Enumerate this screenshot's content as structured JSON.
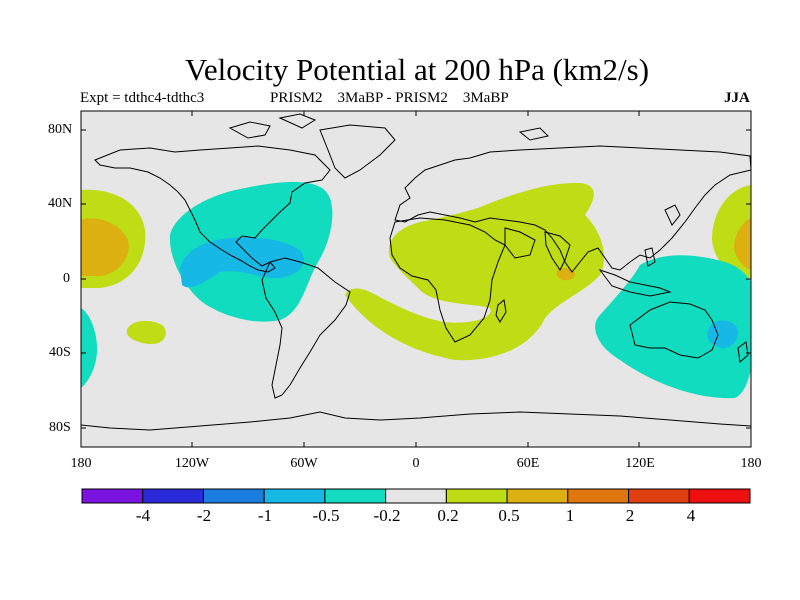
{
  "title": "Velocity Potential at 200 hPa (km2/s)",
  "subtitle": {
    "experiment": "Expt = tdthc4-tdthc3",
    "comparison": "PRISM2    3MaBP - PRISM2    3MaBP",
    "season": "JJA"
  },
  "map": {
    "projection": "cylindrical equidistant",
    "lon_range": [
      -180,
      180
    ],
    "lat_range": [
      -90,
      90
    ],
    "land_color": "#e6e6e6",
    "lat_labels": [
      "80N",
      "40N",
      "0",
      "40S",
      "80S"
    ],
    "lon_labels": [
      "180",
      "120W",
      "60W",
      "0",
      "60E",
      "120E",
      "180"
    ]
  },
  "colorbar": {
    "colors": [
      "#7a12e0",
      "#2a2ad8",
      "#1a7ee0",
      "#16b8e6",
      "#12dcc0",
      "#e6e6e6",
      "#bedd14",
      "#dcb010",
      "#e0760e",
      "#e04010",
      "#ee1010"
    ],
    "labels": [
      "-4",
      "-2",
      "-1",
      "-0.5",
      "-0.2",
      "0.2",
      "0.5",
      "1",
      "2",
      "4"
    ]
  }
}
